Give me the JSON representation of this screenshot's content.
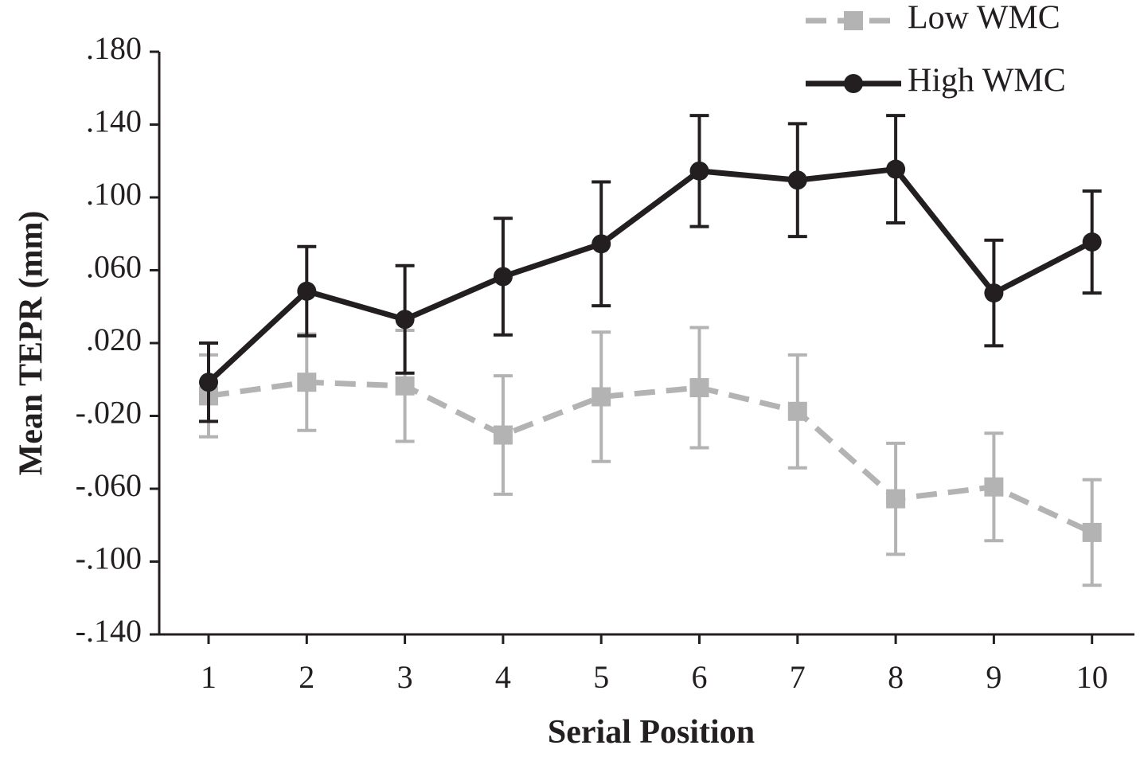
{
  "chart_data": {
    "type": "line",
    "xlabel": "Serial Position",
    "ylabel": "Mean TEPR (mm)",
    "categories": [
      "1",
      "2",
      "3",
      "4",
      "5",
      "6",
      "7",
      "8",
      "9",
      "10"
    ],
    "ylim": [
      -0.14,
      0.18
    ],
    "yticks": [
      0.18,
      0.14,
      0.1,
      0.06,
      0.02,
      -0.02,
      -0.06,
      -0.1,
      -0.14
    ],
    "ytick_labels": [
      ".180",
      ".140",
      ".100",
      ".060",
      ".020",
      "-.020",
      "-.060",
      "-.100",
      "-.140"
    ],
    "grid": false,
    "legend_position": "top-right",
    "series": [
      {
        "name": "Low WMC",
        "color": "#b3b3b3",
        "line_style": "dashed",
        "marker": "square",
        "values": [
          -0.009,
          -0.0015,
          -0.0035,
          -0.0305,
          -0.0095,
          -0.0045,
          -0.0175,
          -0.0655,
          -0.059,
          -0.084
        ],
        "error": [
          0.0225,
          0.0265,
          0.0305,
          0.0325,
          0.0355,
          0.033,
          0.031,
          0.0305,
          0.0295,
          0.029
        ]
      },
      {
        "name": "High WMC",
        "color": "#231f20",
        "line_style": "solid",
        "marker": "circle",
        "values": [
          -0.0015,
          0.0485,
          0.033,
          0.0565,
          0.0745,
          0.1145,
          0.1095,
          0.1155,
          0.0475,
          0.0755
        ],
        "error": [
          0.0215,
          0.0245,
          0.0295,
          0.032,
          0.034,
          0.0305,
          0.031,
          0.0295,
          0.029,
          0.028
        ]
      }
    ]
  }
}
